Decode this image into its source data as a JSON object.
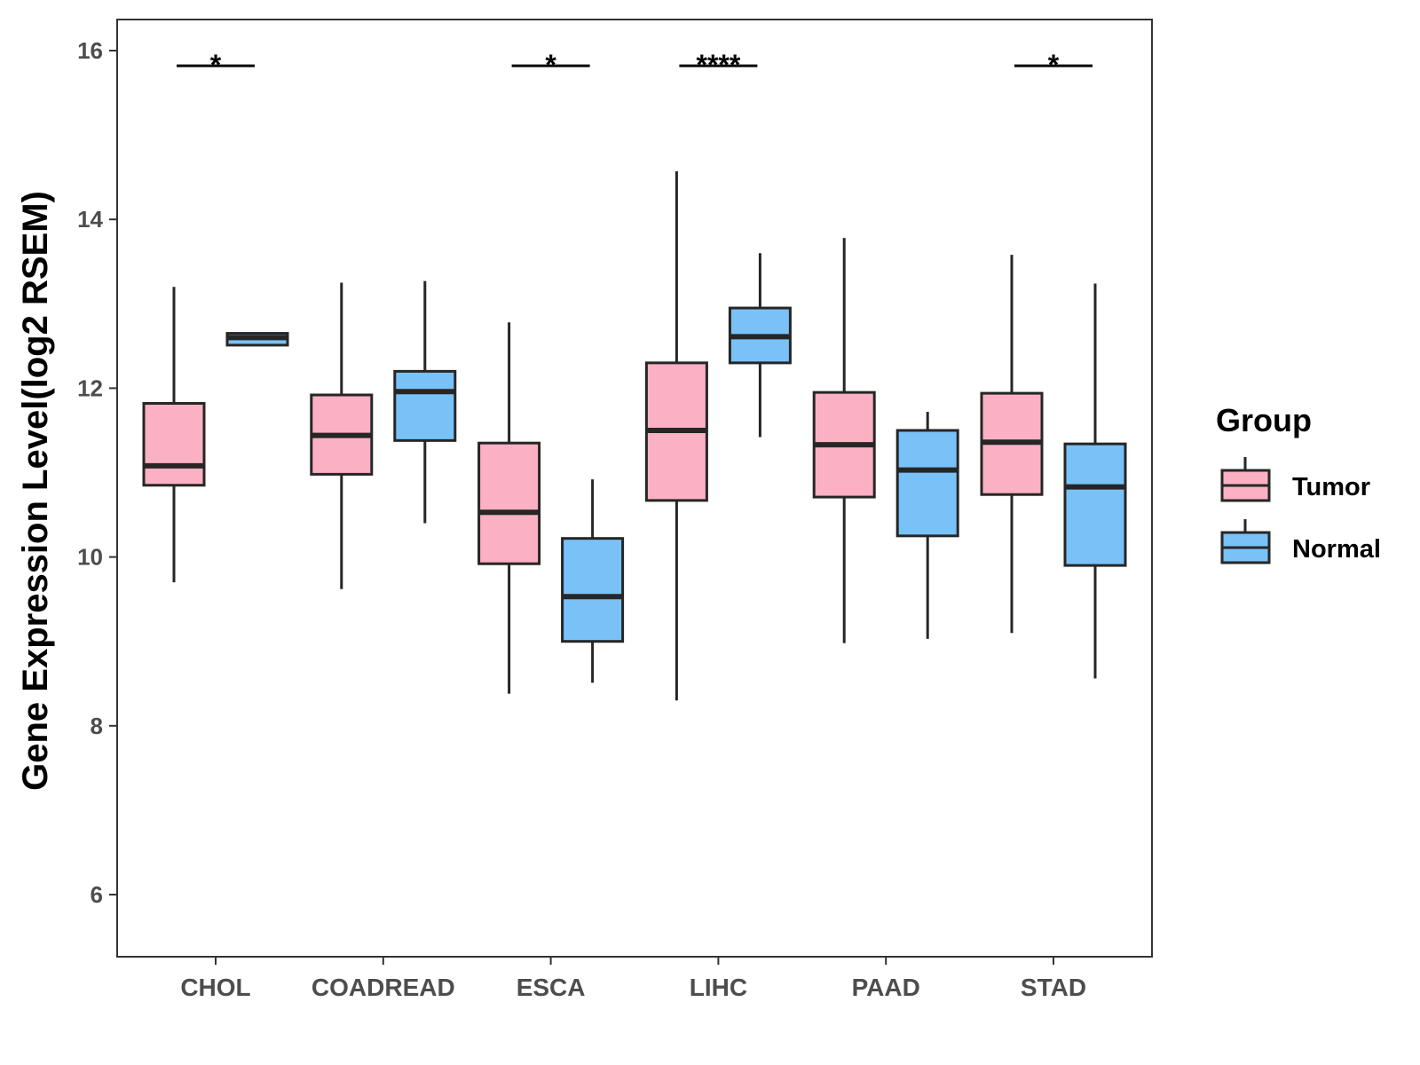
{
  "chart_data": {
    "type": "boxplot",
    "title": "",
    "xlabel": "",
    "ylabel": "Gene Expression Level(log2 RSEM)",
    "ylim": [
      5.3,
      16.4
    ],
    "yticks": [
      6,
      8,
      10,
      12,
      14,
      16
    ],
    "grid": false,
    "categories": [
      "CHOL",
      "COADREAD",
      "ESCA",
      "LIHC",
      "PAAD",
      "STAD"
    ],
    "legend": {
      "title": "Group",
      "position": "right",
      "items": [
        {
          "name": "Tumor",
          "color": "#FBB1C3"
        },
        {
          "name": "Normal",
          "color": "#79C2F8"
        }
      ]
    },
    "series": [
      {
        "name": "Tumor",
        "color": "#FBB1C3",
        "boxes": [
          {
            "category": "CHOL",
            "min": 9.7,
            "q1": 10.85,
            "median": 11.08,
            "q3": 11.82,
            "max": 13.2
          },
          {
            "category": "COADREAD",
            "min": 9.62,
            "q1": 10.98,
            "median": 11.44,
            "q3": 11.92,
            "max": 13.25
          },
          {
            "category": "ESCA",
            "min": 8.38,
            "q1": 9.92,
            "median": 10.53,
            "q3": 11.35,
            "max": 12.78
          },
          {
            "category": "LIHC",
            "min": 8.3,
            "q1": 10.67,
            "median": 11.5,
            "q3": 12.3,
            "max": 14.57
          },
          {
            "category": "PAAD",
            "min": 8.98,
            "q1": 10.71,
            "median": 11.33,
            "q3": 11.95,
            "max": 13.78
          },
          {
            "category": "STAD",
            "min": 9.1,
            "q1": 10.74,
            "median": 11.36,
            "q3": 11.94,
            "max": 13.58
          }
        ]
      },
      {
        "name": "Normal",
        "color": "#79C2F8",
        "boxes": [
          {
            "category": "CHOL",
            "min": 12.51,
            "q1": 12.51,
            "median": 12.6,
            "q3": 12.65,
            "max": 12.65
          },
          {
            "category": "COADREAD",
            "min": 10.4,
            "q1": 11.38,
            "median": 11.96,
            "q3": 12.2,
            "max": 13.27
          },
          {
            "category": "ESCA",
            "min": 8.51,
            "q1": 9.0,
            "median": 9.53,
            "q3": 10.22,
            "max": 10.92
          },
          {
            "category": "LIHC",
            "min": 11.42,
            "q1": 12.3,
            "median": 12.61,
            "q3": 12.95,
            "max": 13.6
          },
          {
            "category": "PAAD",
            "min": 9.03,
            "q1": 10.25,
            "median": 11.03,
            "q3": 11.5,
            "max": 11.72
          },
          {
            "category": "STAD",
            "min": 8.56,
            "q1": 9.9,
            "median": 10.83,
            "q3": 11.34,
            "max": 13.24
          }
        ]
      }
    ],
    "significance": [
      {
        "category": "CHOL",
        "label": "*"
      },
      {
        "category": "ESCA",
        "label": "*"
      },
      {
        "category": "LIHC",
        "label": "****"
      },
      {
        "category": "STAD",
        "label": "*"
      }
    ],
    "significance_y": 15.82
  }
}
